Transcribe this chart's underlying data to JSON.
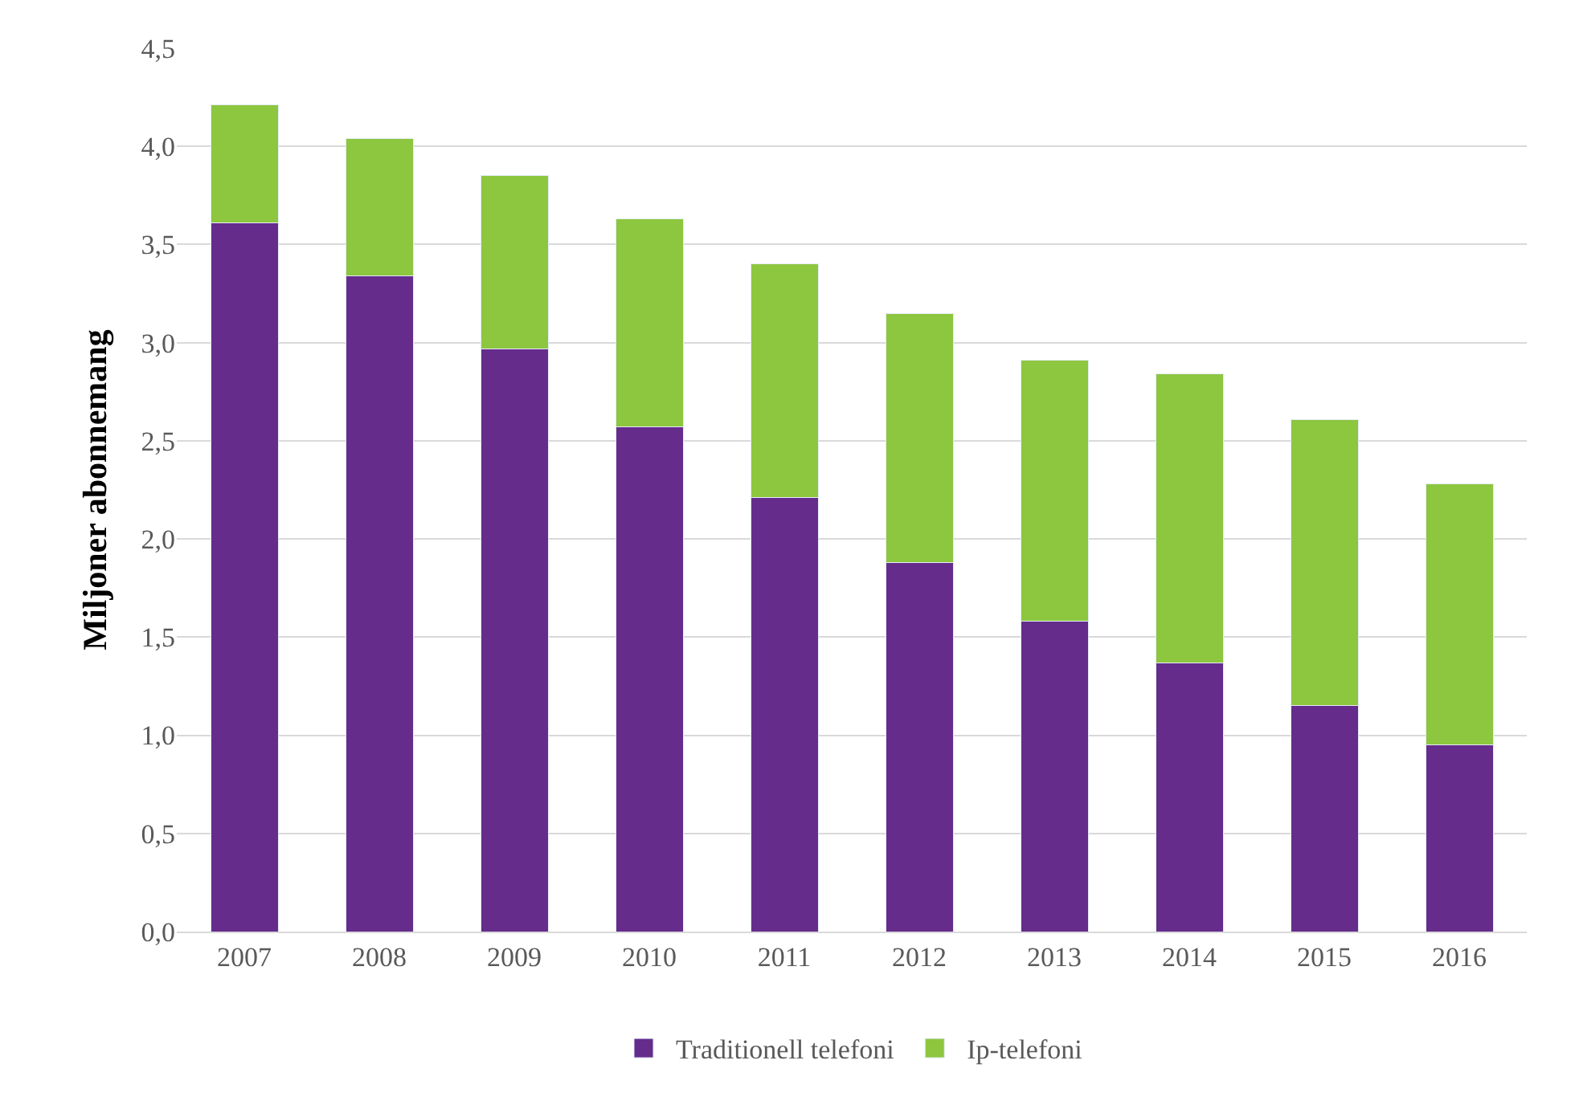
{
  "chart_data": {
    "type": "bar",
    "stacked": true,
    "ylabel": "Miljoner abonnemang",
    "categories": [
      "2007",
      "2008",
      "2009",
      "2010",
      "2011",
      "2012",
      "2013",
      "2014",
      "2015",
      "2016"
    ],
    "series": [
      {
        "name": "Traditionell telefoni",
        "color": "#652c8c",
        "values": [
          3.61,
          3.34,
          2.97,
          2.57,
          2.21,
          1.88,
          1.58,
          1.37,
          1.15,
          0.95
        ]
      },
      {
        "name": "Ip-telefoni",
        "color": "#8dc63f",
        "values": [
          0.6,
          0.7,
          0.88,
          1.06,
          1.19,
          1.27,
          1.33,
          1.47,
          1.46,
          1.33
        ]
      }
    ],
    "ylim": [
      0,
      4.5
    ],
    "yticks": [
      {
        "value": 0,
        "label": "0,0"
      },
      {
        "value": 0.5,
        "label": "0,5"
      },
      {
        "value": 1,
        "label": "1,0"
      },
      {
        "value": 1.5,
        "label": "1,5"
      },
      {
        "value": 2,
        "label": "2,0"
      },
      {
        "value": 2.5,
        "label": "2,5"
      },
      {
        "value": 3,
        "label": "3,0"
      },
      {
        "value": 3.5,
        "label": "3,5"
      },
      {
        "value": 4,
        "label": "4,0"
      },
      {
        "value": 4.5,
        "label": "4,5"
      }
    ],
    "grid": "y",
    "legend": "bottom"
  }
}
